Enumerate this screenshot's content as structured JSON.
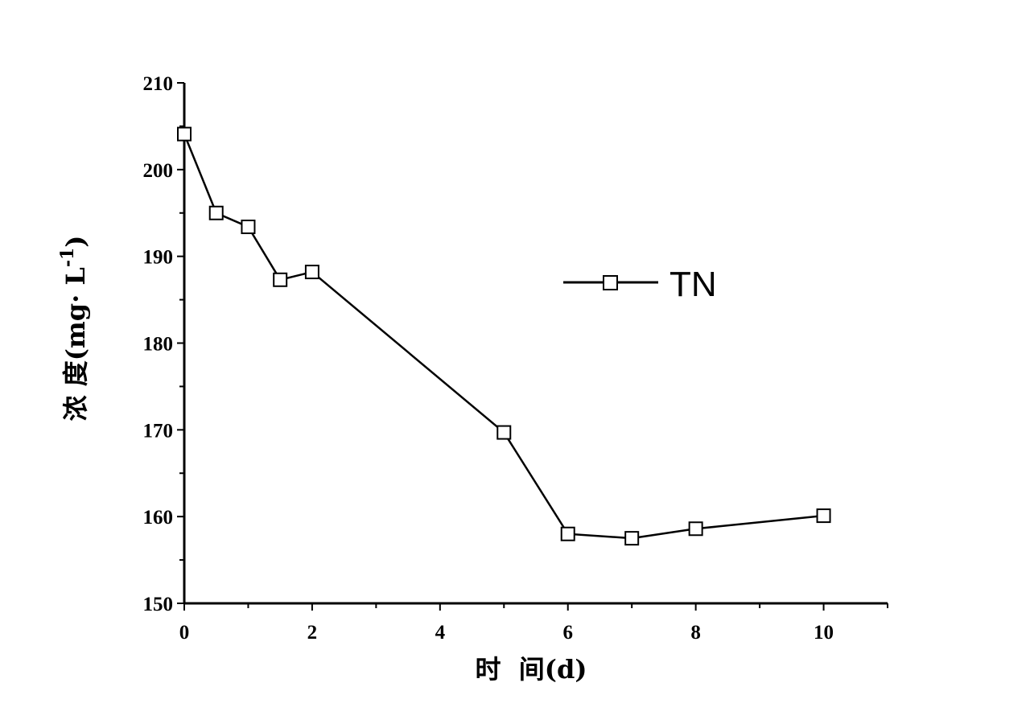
{
  "chart_data": {
    "type": "line",
    "title": "",
    "xlabel": "时  间(d)",
    "ylabel_main": "浓 度(mg· L",
    "ylabel_sup": "-1",
    "ylabel_close": ")",
    "xlim": [
      0,
      11
    ],
    "ylim": [
      150,
      210
    ],
    "xticks": [
      0,
      2,
      4,
      6,
      8,
      10
    ],
    "xtick_labels": [
      "0",
      "2",
      "4",
      "6",
      "8",
      "10"
    ],
    "yticks": [
      150,
      160,
      170,
      180,
      190,
      200,
      210
    ],
    "ytick_labels": [
      "150",
      "160",
      "170",
      "180",
      "190",
      "200",
      "210"
    ],
    "legend_position": "upper-right",
    "grid": false,
    "series": [
      {
        "name": "TN",
        "marker": "open-square",
        "color": "#000000",
        "x": [
          0,
          0.5,
          1,
          1.5,
          2,
          5,
          6,
          7,
          8,
          10
        ],
        "y": [
          204.1,
          195.0,
          193.4,
          187.3,
          188.2,
          169.7,
          158.0,
          157.5,
          158.6,
          160.1
        ]
      }
    ]
  }
}
